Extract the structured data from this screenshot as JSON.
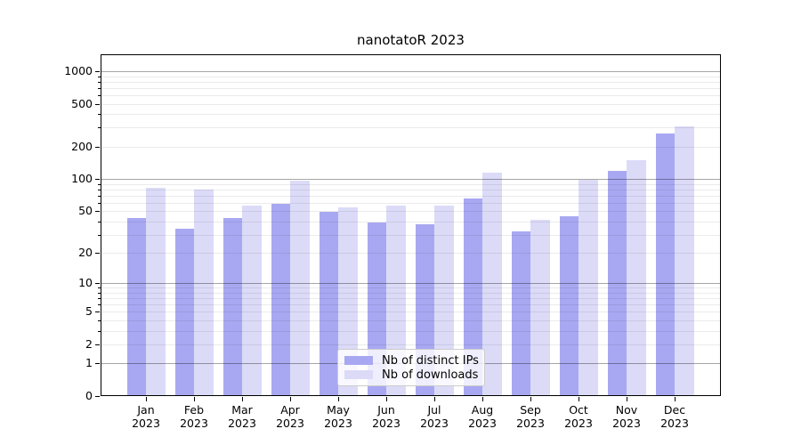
{
  "figure": {
    "title": "nanotatoR 2023"
  },
  "colors": {
    "bar_ips": "#a8a8f2",
    "bar_downloads": "#dbdbf8",
    "grid_major": "rgba(0,0,0,0.35)",
    "grid_minor": "rgba(0,0,0,0.08)",
    "spine": "#000000",
    "background": "#ffffff"
  },
  "chart_data": {
    "type": "bar",
    "title": "nanotatoR 2023",
    "categories": [
      "Jan 2023",
      "Feb 2023",
      "Mar 2023",
      "Apr 2023",
      "May 2023",
      "Jun 2023",
      "Jul 2023",
      "Aug 2023",
      "Sep 2023",
      "Oct 2023",
      "Nov 2023",
      "Dec 2023"
    ],
    "series": [
      {
        "name": "Nb of distinct IPs",
        "color": "#a8a8f2",
        "values": [
          44,
          35,
          44,
          60,
          50,
          40,
          38,
          67,
          33,
          46,
          121,
          268
        ]
      },
      {
        "name": "Nb of downloads",
        "color": "#dbdbf8",
        "values": [
          85,
          82,
          57,
          98,
          55,
          58,
          58,
          116,
          42,
          101,
          152,
          315
        ]
      }
    ],
    "yscale": "log1p",
    "ylim": [
      0,
      1400
    ],
    "xlabel": "",
    "ylabel": "",
    "yticks_labeled": [
      0,
      1,
      2,
      5,
      10,
      20,
      50,
      100,
      200,
      500,
      1000
    ],
    "grid": {
      "on": true,
      "major_lines": [
        1,
        10,
        100,
        1000
      ],
      "minor_lines": [
        2,
        3,
        4,
        5,
        6,
        7,
        8,
        9,
        20,
        30,
        40,
        50,
        60,
        70,
        80,
        90,
        200,
        300,
        400,
        500,
        600,
        700,
        800,
        900
      ],
      "minor_tick_values": [
        3,
        4,
        6,
        7,
        8,
        9,
        30,
        40,
        60,
        70,
        80,
        90,
        300,
        400,
        600,
        700,
        800,
        900
      ]
    },
    "legend": {
      "position": "lower center",
      "items": [
        "Nb of distinct IPs",
        "Nb of downloads"
      ]
    }
  }
}
